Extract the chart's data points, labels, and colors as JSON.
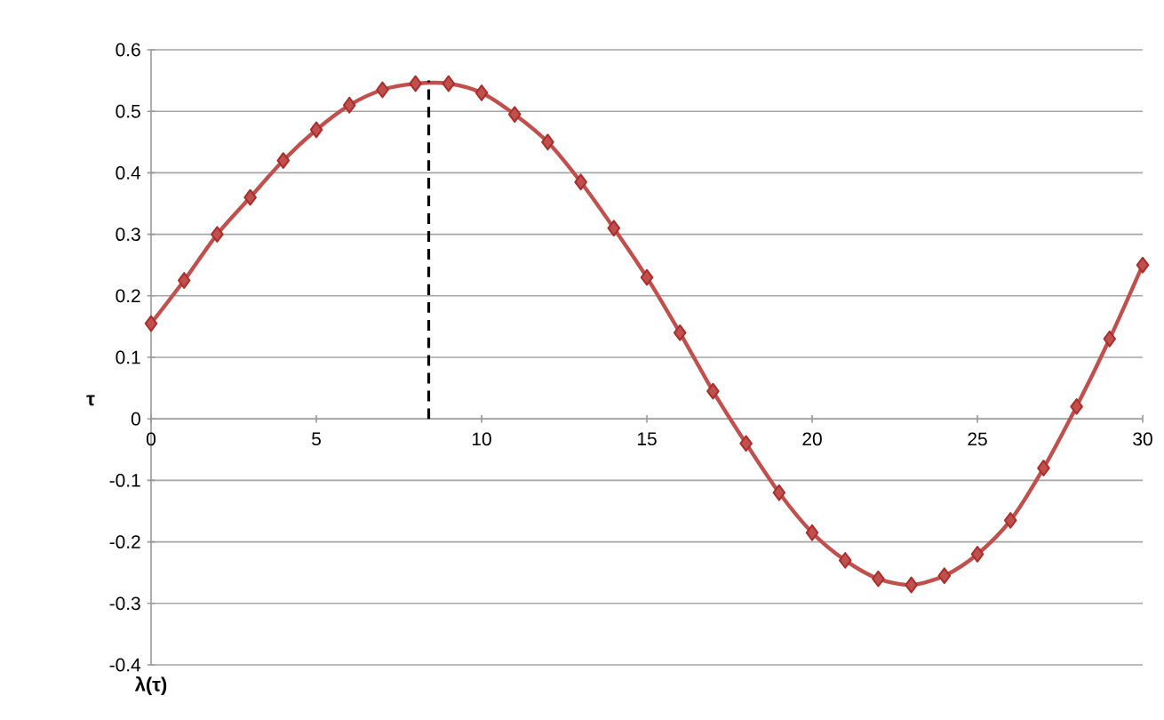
{
  "chart_data": {
    "type": "line",
    "xlabel": "λ(τ)",
    "ylabel": "τ",
    "x": [
      0,
      1,
      2,
      3,
      4,
      5,
      6,
      7,
      8,
      9,
      10,
      11,
      12,
      13,
      14,
      15,
      16,
      17,
      18,
      19,
      20,
      21,
      22,
      23,
      24,
      25,
      26,
      27,
      28,
      29,
      30
    ],
    "series": [
      {
        "color": "#c0504d",
        "marker": "diamond",
        "line_style": "solid",
        "values": [
          0.155,
          0.225,
          0.3,
          0.36,
          0.42,
          0.47,
          0.51,
          0.535,
          0.545,
          0.545,
          0.53,
          0.495,
          0.45,
          0.385,
          0.31,
          0.23,
          0.14,
          0.045,
          -0.04,
          -0.12,
          -0.185,
          -0.23,
          -0.26,
          -0.27,
          -0.255,
          -0.22,
          -0.165,
          -0.08,
          0.02,
          0.13,
          0.25
        ]
      },
      {
        "color": "#000000",
        "marker": "none",
        "line_style": "dashed",
        "x": [
          8.4,
          8.4
        ],
        "values": [
          0,
          0.55
        ]
      }
    ],
    "xlim": [
      0,
      30
    ],
    "ylim": [
      -0.4,
      0.6
    ],
    "xticks": [
      0,
      5,
      10,
      15,
      20,
      25,
      30
    ],
    "yticks": [
      -0.4,
      -0.3,
      -0.2,
      -0.1,
      0,
      0.1,
      0.2,
      0.3,
      0.4,
      0.5,
      0.6
    ],
    "grid": "y"
  }
}
